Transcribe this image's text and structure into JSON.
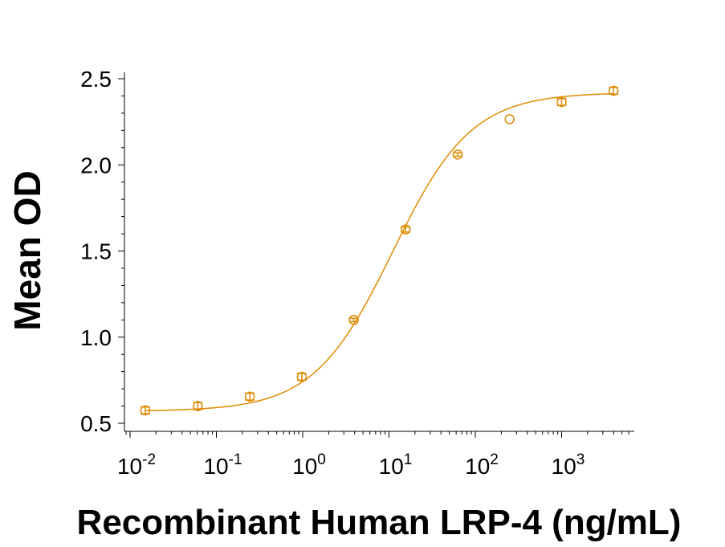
{
  "chart_data": {
    "type": "scatter",
    "title": "",
    "xlabel": "Recombinant Human LRP-4 (ng/mL)",
    "ylabel": "Mean OD",
    "x_scale": "log10",
    "xlim": [
      0.01,
      7000
    ],
    "ylim": [
      0.46,
      2.53
    ],
    "grid": false,
    "legend": "none",
    "color": "#E08A00",
    "y_ticks": [
      {
        "value": 0.5,
        "label": "0.5"
      },
      {
        "value": 1.0,
        "label": "1.0"
      },
      {
        "value": 1.5,
        "label": "1.5"
      },
      {
        "value": 2.0,
        "label": "2.0"
      },
      {
        "value": 2.5,
        "label": "2.5"
      }
    ],
    "x_ticks": [
      {
        "value": 0.01,
        "base": "10",
        "exp": "-2"
      },
      {
        "value": 0.1,
        "base": "10",
        "exp": "-1"
      },
      {
        "value": 1,
        "base": "10",
        "exp": "0"
      },
      {
        "value": 10,
        "base": "10",
        "exp": "1"
      },
      {
        "value": 100,
        "base": "10",
        "exp": "2"
      },
      {
        "value": 1000,
        "base": "10",
        "exp": "3"
      }
    ],
    "series": [
      {
        "points": [
          {
            "x": 0.015,
            "y": 0.575,
            "err": 0.02
          },
          {
            "x": 0.061,
            "y": 0.6,
            "err": 0.02
          },
          {
            "x": 0.244,
            "y": 0.655,
            "err": 0.02
          },
          {
            "x": 0.977,
            "y": 0.77,
            "err": 0.02
          },
          {
            "x": 3.9,
            "y": 1.1,
            "err": 0.01
          },
          {
            "x": 15.6,
            "y": 1.625,
            "err": 0.015
          },
          {
            "x": 62.5,
            "y": 2.06,
            "err": 0.01
          },
          {
            "x": 250,
            "y": 2.265,
            "err": 0.0
          },
          {
            "x": 1000,
            "y": 2.365,
            "err": 0.02
          },
          {
            "x": 4000,
            "y": 2.43,
            "err": 0.02
          }
        ],
        "fit": {
          "model": "4PL",
          "bottom": 0.57,
          "top": 2.42,
          "ec50": 11.0,
          "hill": 0.95
        }
      }
    ]
  }
}
